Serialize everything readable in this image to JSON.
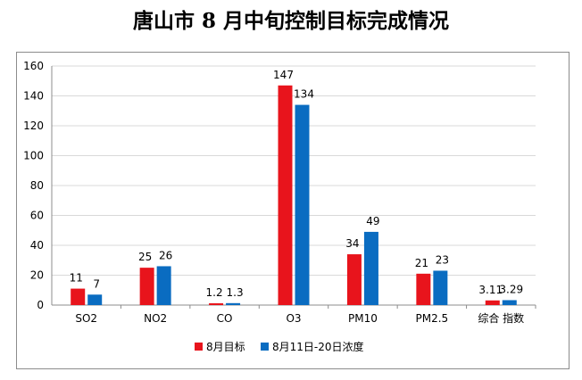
{
  "chart_data": {
    "type": "bar",
    "title": "唐山市 8 月中旬控制目标完成情况",
    "categories": [
      "SO2",
      "NO2",
      "CO",
      "O3",
      "PM10",
      "PM2.5",
      "综合 指数"
    ],
    "series": [
      {
        "name": "8月目标",
        "values": [
          11,
          25,
          1.2,
          147,
          34,
          21,
          3.11
        ],
        "labels": [
          "11",
          "25",
          "1.2",
          "147",
          "34",
          "21",
          "3.11"
        ],
        "color": "#e8141c"
      },
      {
        "name": "8月11日-20日浓度",
        "values": [
          7,
          26,
          1.3,
          134,
          49,
          23,
          3.29
        ],
        "labels": [
          "7",
          "26",
          "1.3",
          "134",
          "49",
          "23",
          "3.29"
        ],
        "color": "#0a6cc1"
      }
    ],
    "yticks": [
      "0",
      "20",
      "40",
      "60",
      "80",
      "100",
      "120",
      "140",
      "160"
    ],
    "ylim": [
      0,
      160
    ],
    "grid": true,
    "legend": "bottom"
  }
}
